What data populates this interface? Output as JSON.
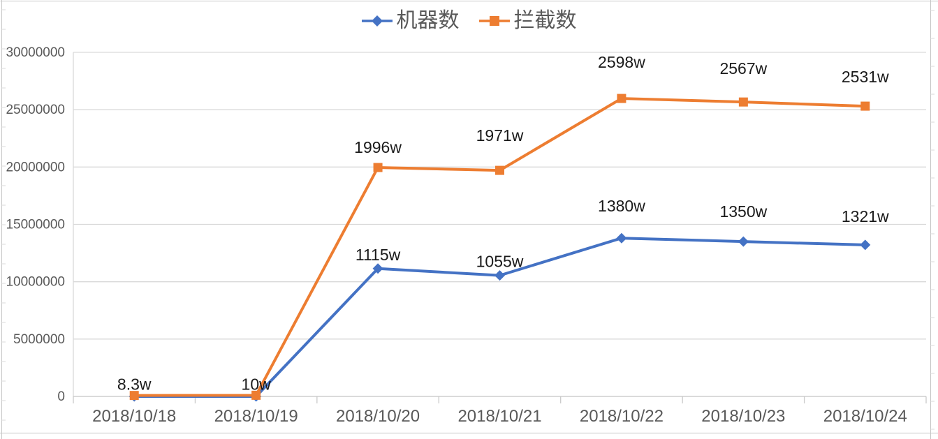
{
  "chart_data": {
    "type": "line",
    "categories": [
      "2018/10/18",
      "2018/10/19",
      "2018/10/20",
      "2018/10/21",
      "2018/10/22",
      "2018/10/23",
      "2018/10/24"
    ],
    "series": [
      {
        "name": "机器数",
        "color": "#4472C4",
        "marker": "diamond",
        "values": [
          0,
          0,
          11150000,
          10550000,
          13800000,
          13500000,
          13210000
        ],
        "labels": [
          "",
          "",
          "1115w",
          "1055w",
          "1380w",
          "1350w",
          "1321w"
        ],
        "label_dy": [
          0,
          0,
          -12,
          -12,
          -38,
          -35,
          -33
        ]
      },
      {
        "name": "拦截数",
        "color": "#ED7D31",
        "marker": "square",
        "values": [
          83000,
          100000,
          19960000,
          19710000,
          25980000,
          25670000,
          25310000
        ],
        "labels": [
          "8.3w",
          "10w",
          "1996w",
          "1971w",
          "2598w",
          "2567w",
          "2531w"
        ],
        "label_dy": [
          -8,
          -8,
          -21,
          -42,
          -44,
          -40,
          -34
        ]
      }
    ],
    "ylim": [
      0,
      30000000
    ],
    "ytick_step": 5000000,
    "ytick_labels": [
      "0",
      "5000000",
      "10000000",
      "15000000",
      "20000000",
      "25000000",
      "30000000"
    ],
    "legend_position": "top",
    "grid": "horizontal"
  },
  "colors": {
    "series_blue": "#4472C4",
    "series_orange": "#ED7D31",
    "gridline": "#D9D9D9",
    "axis_line": "#C9C9C9",
    "frame_line": "#C6C6C6",
    "axis_text": "#595959",
    "data_label_text": "#1A1A1A",
    "background": "#FFFFFF"
  }
}
